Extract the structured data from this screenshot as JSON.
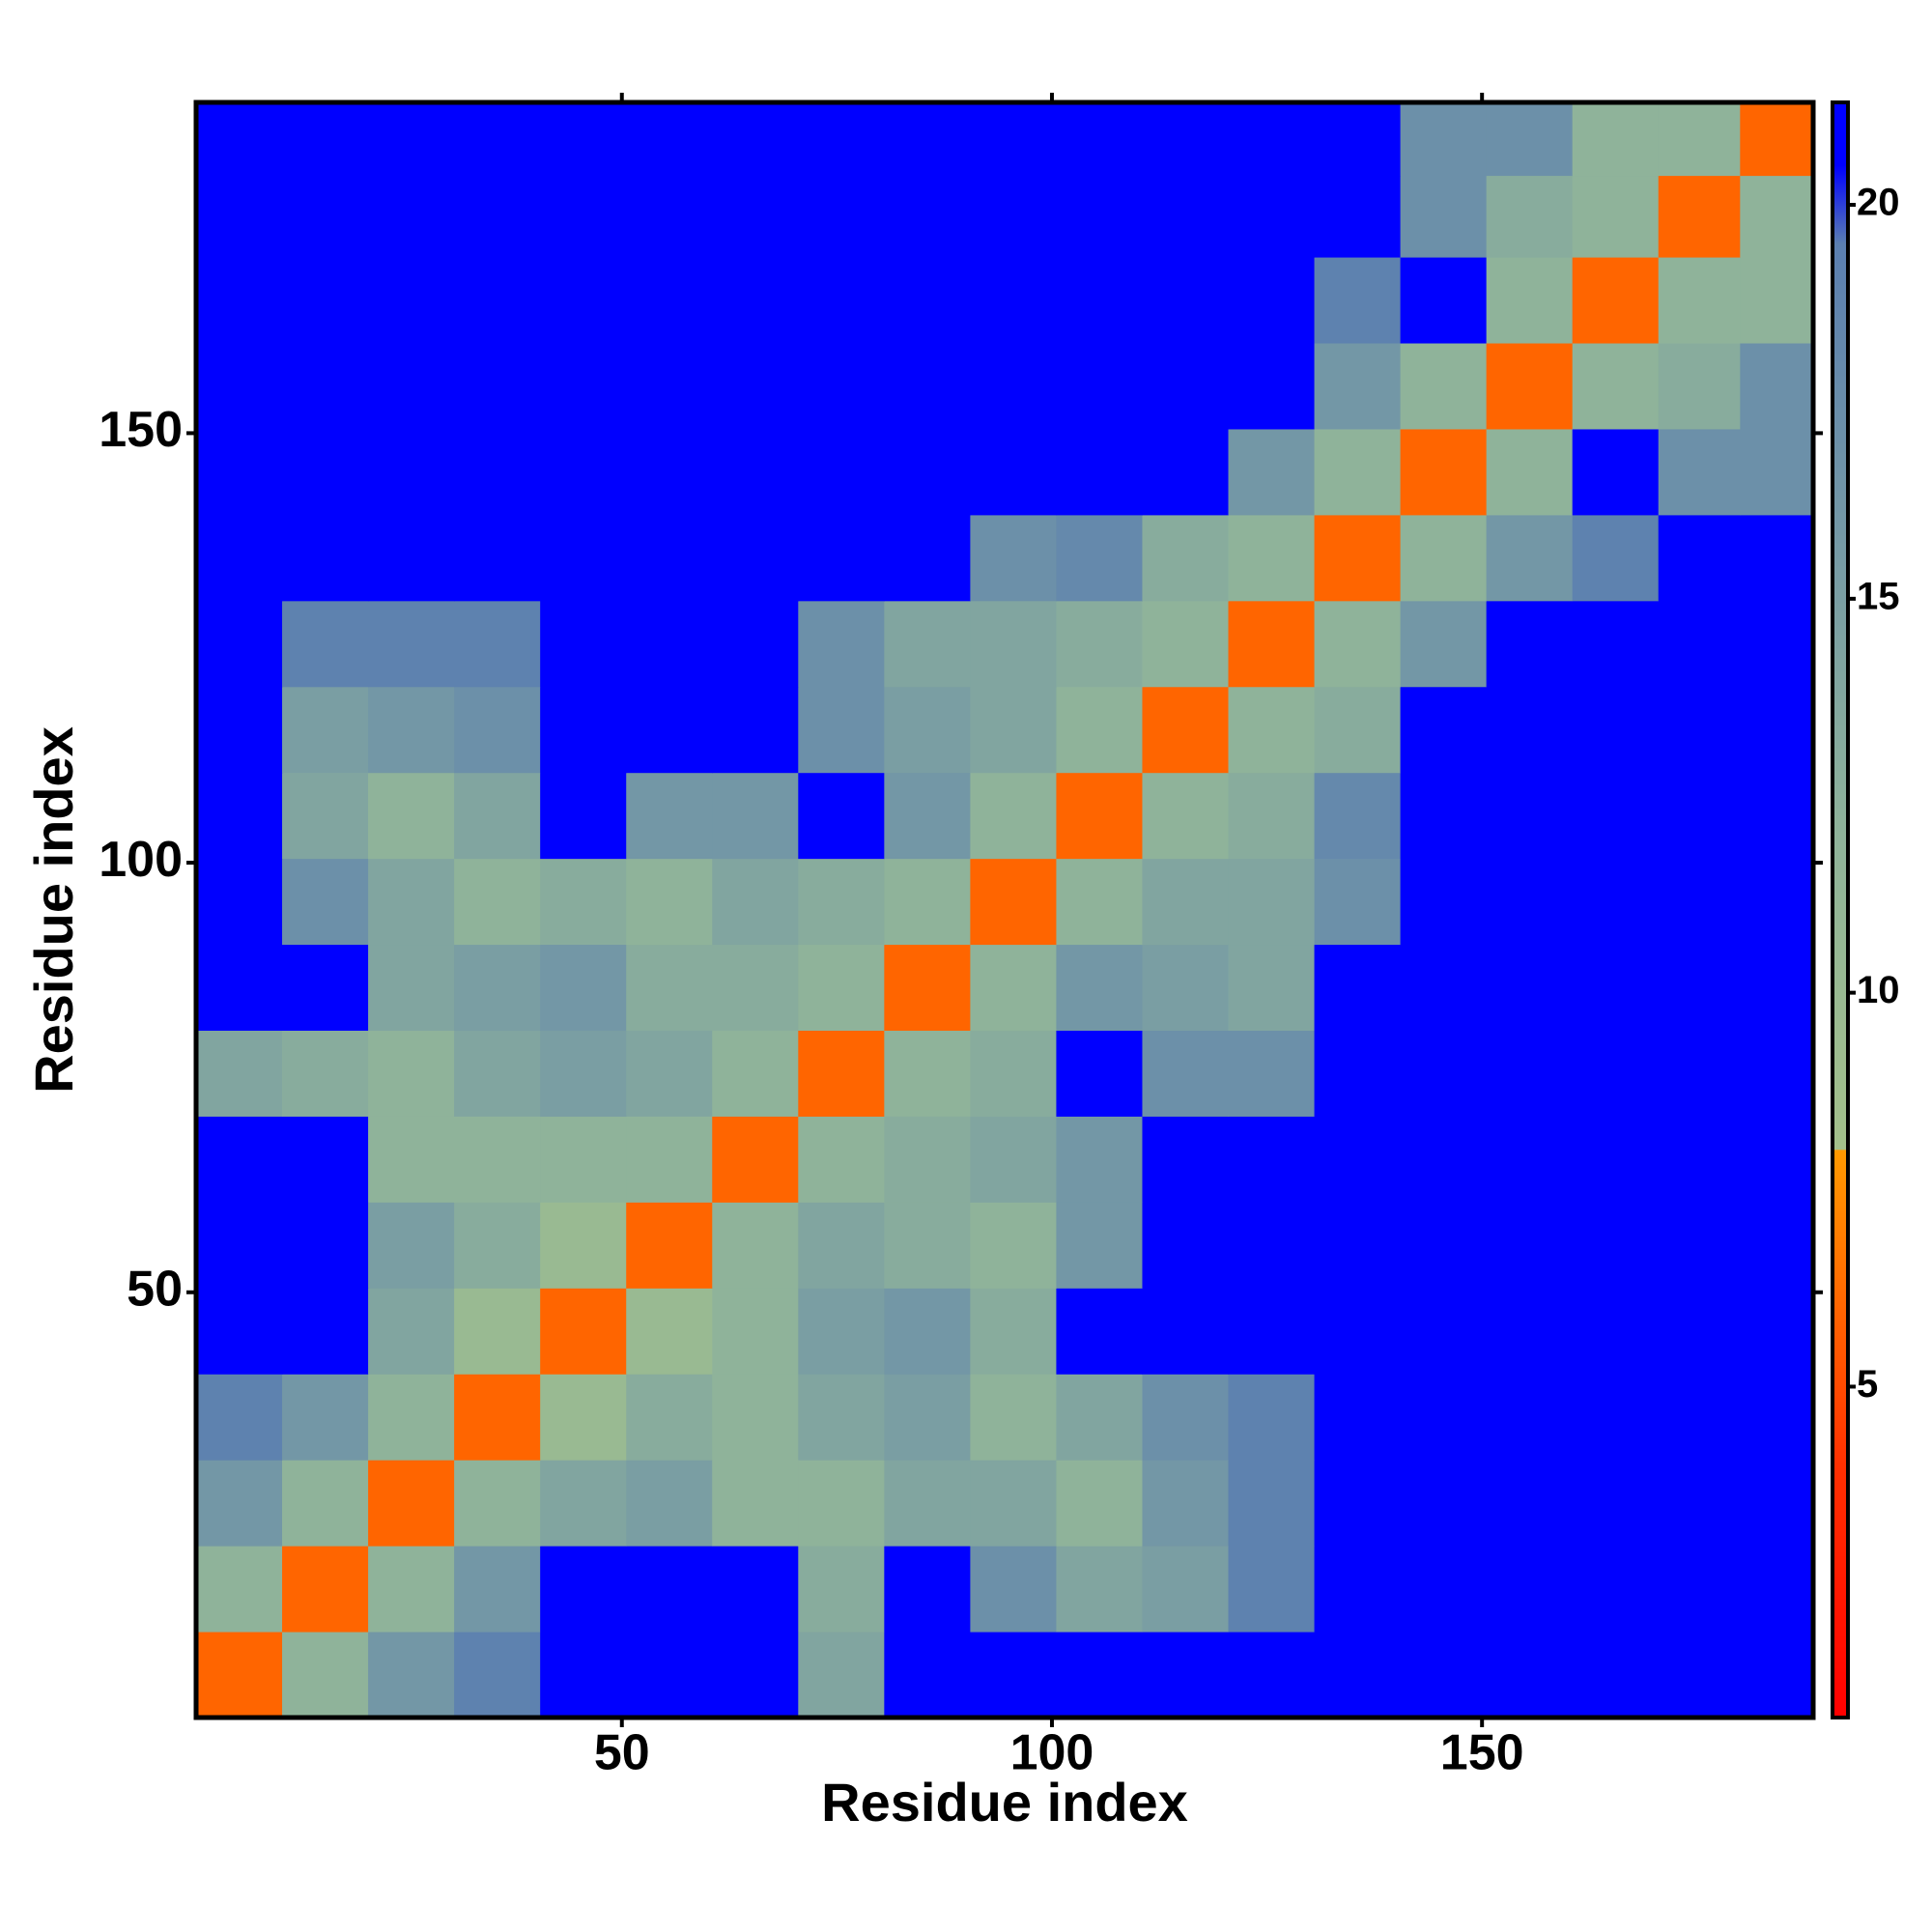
{
  "chart_data": {
    "type": "heatmap",
    "xlabel": "Residue index",
    "ylabel": "Residue index",
    "x": [
      5.5,
      15.5,
      25.5,
      35.5,
      45.5,
      55.5,
      65.5,
      75.5,
      85.5,
      95.5,
      105.5,
      115.5,
      125.5,
      135.5,
      145.5,
      155.5,
      165.5,
      175.5,
      184.5
    ],
    "y": [
      5.5,
      15.5,
      25.5,
      35.5,
      45.5,
      55.5,
      65.5,
      75.5,
      85.5,
      95.5,
      105.5,
      115.5,
      125.5,
      135.5,
      145.5,
      155.5,
      165.5,
      175.5,
      184.5
    ],
    "xlim": [
      0.5,
      188.5
    ],
    "ylim": [
      0.5,
      188.5
    ],
    "xticks": [
      50,
      100,
      150
    ],
    "yticks": [
      50,
      100,
      150
    ],
    "z": [
      [
        6,
        12,
        16,
        19,
        21,
        21,
        21,
        14,
        21,
        21,
        21,
        21,
        21,
        21,
        21,
        21,
        21,
        21,
        21
      ],
      [
        12,
        6,
        12,
        16,
        21,
        21,
        21,
        13,
        21,
        17,
        14,
        15,
        19,
        21,
        21,
        21,
        21,
        21,
        21
      ],
      [
        16,
        12,
        6,
        12,
        14,
        15,
        12,
        12,
        14,
        14,
        12,
        16,
        19,
        21,
        21,
        21,
        21,
        21,
        21
      ],
      [
        19,
        16,
        12,
        6,
        10,
        13,
        12,
        14,
        15,
        12,
        14,
        17,
        19,
        21,
        21,
        21,
        21,
        21,
        21
      ],
      [
        21,
        21,
        14,
        10,
        6,
        10,
        12,
        15,
        16,
        13,
        21,
        21,
        21,
        21,
        21,
        21,
        21,
        21,
        21
      ],
      [
        21,
        21,
        15,
        13,
        10,
        6,
        12,
        14,
        13,
        12,
        16,
        21,
        21,
        21,
        21,
        21,
        21,
        21,
        21
      ],
      [
        21,
        21,
        12,
        12,
        12,
        12,
        6,
        12,
        13,
        14,
        16,
        21,
        21,
        21,
        21,
        21,
        21,
        21,
        21
      ],
      [
        14,
        13,
        12,
        14,
        15,
        14,
        12,
        6,
        12,
        13,
        21,
        17,
        17,
        21,
        21,
        21,
        21,
        21,
        21
      ],
      [
        21,
        21,
        14,
        15,
        16,
        13,
        13,
        12,
        6,
        12,
        16,
        15,
        14,
        21,
        21,
        21,
        21,
        21,
        21
      ],
      [
        21,
        17,
        14,
        12,
        13,
        12,
        14,
        13,
        12,
        6,
        12,
        14,
        14,
        17,
        21,
        21,
        21,
        21,
        21
      ],
      [
        21,
        14,
        12,
        14,
        21,
        16,
        16,
        21,
        16,
        12,
        6,
        12,
        13,
        18,
        21,
        21,
        21,
        21,
        21
      ],
      [
        21,
        15,
        16,
        17,
        21,
        21,
        21,
        17,
        15,
        14,
        12,
        6,
        12,
        13,
        21,
        21,
        21,
        21,
        21
      ],
      [
        21,
        19,
        19,
        19,
        21,
        21,
        21,
        17,
        14,
        14,
        13,
        12,
        6,
        12,
        16,
        21,
        21,
        21,
        21
      ],
      [
        21,
        21,
        21,
        21,
        21,
        21,
        21,
        21,
        21,
        17,
        18,
        13,
        12,
        6,
        12,
        16,
        19,
        21,
        21
      ],
      [
        21,
        21,
        21,
        21,
        21,
        21,
        21,
        21,
        21,
        21,
        21,
        21,
        16,
        12,
        6,
        12,
        21,
        17,
        17
      ],
      [
        21,
        21,
        21,
        21,
        21,
        21,
        21,
        21,
        21,
        21,
        21,
        21,
        21,
        16,
        12,
        6,
        12,
        13,
        17
      ],
      [
        21,
        21,
        21,
        21,
        21,
        21,
        21,
        21,
        21,
        21,
        21,
        21,
        21,
        19,
        21,
        12,
        6,
        12,
        12
      ],
      [
        21,
        21,
        21,
        21,
        21,
        21,
        21,
        21,
        21,
        21,
        21,
        21,
        21,
        21,
        17,
        13,
        12,
        6,
        12
      ],
      [
        21,
        21,
        21,
        21,
        21,
        21,
        21,
        21,
        21,
        21,
        21,
        21,
        21,
        21,
        17,
        17,
        12,
        12,
        6
      ]
    ],
    "clim": [
      0.8,
      21.3
    ],
    "cticks": [
      5,
      10,
      15,
      20
    ],
    "colorscale": [
      [
        0.8,
        "#ff0000"
      ],
      [
        4,
        "#ff3000"
      ],
      [
        8,
        "#ff9a00"
      ],
      [
        8.01,
        "#a3c08a"
      ],
      [
        12,
        "#8fb39a"
      ],
      [
        19.5,
        "#5b7fb0"
      ],
      [
        20.5,
        "#0000ff"
      ],
      [
        21.3,
        "#0000ff"
      ]
    ]
  }
}
